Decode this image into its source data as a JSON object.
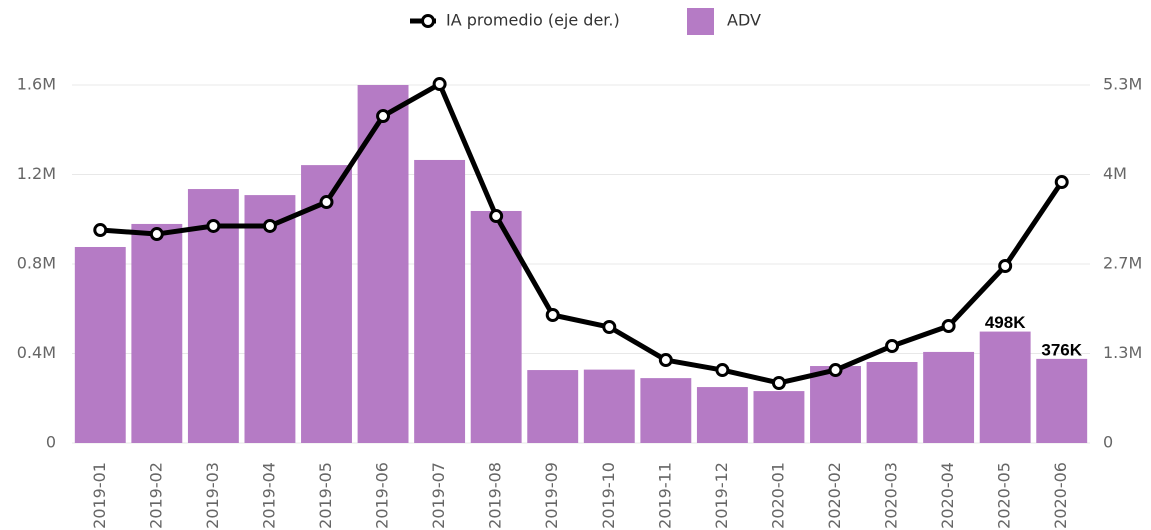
{
  "chart_data": {
    "type": "bar_line",
    "categories": [
      "2019-01",
      "2019-02",
      "2019-03",
      "2019-04",
      "2019-05",
      "2019-06",
      "2019-07",
      "2019-08",
      "2019-09",
      "2019-10",
      "2019-11",
      "2019-12",
      "2020-01",
      "2020-02",
      "2020-03",
      "2020-04",
      "2020-05",
      "2020-06"
    ],
    "series": [
      {
        "name": "IA promedio (eje der.)",
        "type": "line",
        "axis": "y2",
        "color": "#000000",
        "values": [
          3173000,
          3113000,
          3233000,
          3233000,
          3590000,
          4871000,
          5348000,
          3381000,
          1907000,
          1728000,
          1236000,
          1087000,
          894000,
          1087000,
          1445000,
          1743000,
          2637000,
          3888000
        ]
      },
      {
        "name": "ADV",
        "type": "bar",
        "color": "#b57bc5",
        "values": [
          876000,
          979000,
          1135000,
          1108000,
          1242000,
          1600000,
          1265000,
          1037000,
          326000,
          328000,
          290000,
          250000,
          232000,
          344000,
          362000,
          407000,
          498000,
          376000
        ],
        "value_labels": [
          null,
          null,
          null,
          null,
          null,
          null,
          null,
          null,
          null,
          null,
          null,
          null,
          null,
          null,
          null,
          null,
          "498K",
          "376K"
        ]
      }
    ],
    "ylim": [
      0,
      1600000
    ],
    "yticks": [
      0,
      {
        "value": 400000,
        "label": "0.4M"
      },
      {
        "value": 800000,
        "label": "0.8M"
      },
      {
        "value": 1200000,
        "label": "1.2M"
      },
      {
        "value": 1600000,
        "label": "1.6M"
      }
    ],
    "y2lim": [
      0,
      5333333
    ],
    "y2ticks": [
      0,
      {
        "value": 1333333,
        "label": "1.3M"
      },
      {
        "value": 2666667,
        "label": "2.7M"
      },
      {
        "value": 4000000,
        "label": "4M"
      },
      {
        "value": 5333333,
        "label": "5.3M"
      }
    ],
    "grid": true,
    "legend": "top"
  }
}
